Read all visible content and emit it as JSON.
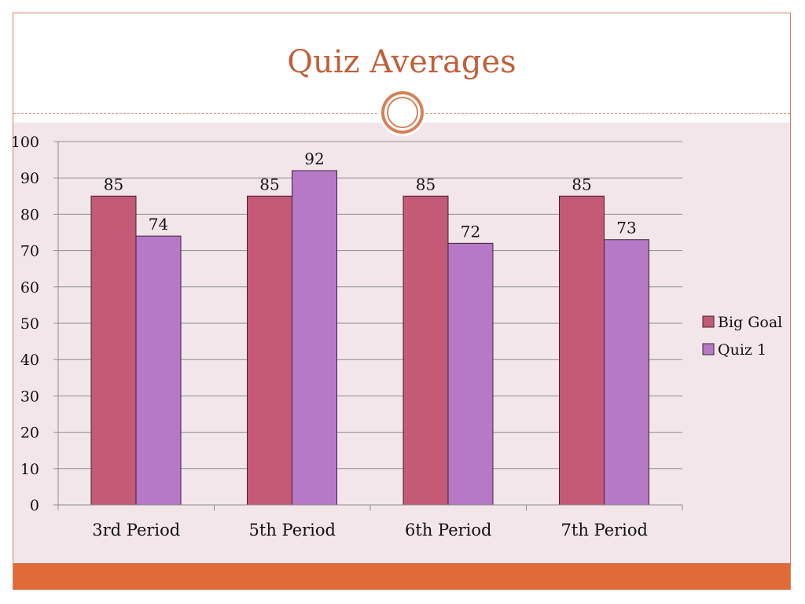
{
  "slide": {
    "title": "Quiz Averages"
  },
  "colors": {
    "title": "#c0603a",
    "accent_bar": "#e06b38",
    "content_bg": "#f3e6eb",
    "ornament": "#d4825a"
  },
  "chart_data": {
    "type": "bar",
    "title": "",
    "xlabel": "",
    "ylabel": "",
    "categories": [
      "3rd Period",
      "5th Period",
      "6th Period",
      "7th Period"
    ],
    "series": [
      {
        "name": "Big Goal",
        "values": [
          85,
          85,
          85,
          85
        ],
        "color": "#c45a75"
      },
      {
        "name": "Quiz 1",
        "values": [
          74,
          92,
          72,
          73
        ],
        "color": "#b679c8"
      }
    ],
    "ylim": [
      0,
      100
    ],
    "yticks": [
      0,
      10,
      20,
      30,
      40,
      50,
      60,
      70,
      80,
      90,
      100
    ],
    "grid": true,
    "data_labels": true,
    "legend_position": "right"
  }
}
